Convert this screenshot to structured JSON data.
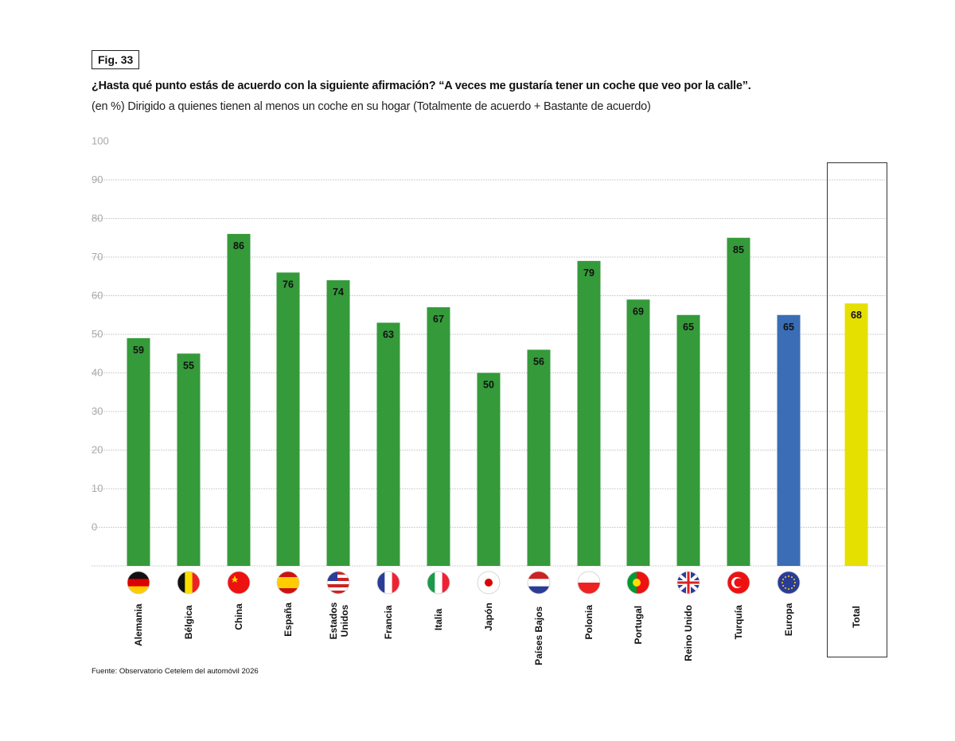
{
  "figure_label": "Fig. 33",
  "chart_data": {
    "type": "bar",
    "title": "¿Hasta qué punto estás de acuerdo con la siguiente afirmación? “A veces me gustaría tener un coche que veo por la calle”.",
    "subtitle": "(en %) Dirigido a quienes tienen al menos un coche en su hogar (Totalmente de acuerdo + Bastante de acuerdo)",
    "categories": [
      "Alemania",
      "Bélgica",
      "China",
      "España",
      "Estados Unidos",
      "Francia",
      "Italia",
      "Japón",
      "Países Bajos",
      "Polonia",
      "Portugal",
      "Reino Unido",
      "Turquía",
      "Europa",
      "Total"
    ],
    "values": [
      59,
      55,
      86,
      76,
      74,
      63,
      67,
      50,
      56,
      79,
      69,
      65,
      85,
      65,
      68
    ],
    "ytick_labels": [
      "0",
      "10",
      "20",
      "30",
      "40",
      "50",
      "60",
      "70",
      "80",
      "90",
      "100"
    ],
    "ylim": [
      0,
      100
    ],
    "grid": true,
    "colors": {
      "country": "#359a3a",
      "Europa": "#3a6db5",
      "Total": "#e6e000"
    },
    "flags": [
      "germany-flag",
      "belgium-flag",
      "china-flag",
      "spain-flag",
      "usa-flag",
      "france-flag",
      "italy-flag",
      "japan-flag",
      "netherlands-flag",
      "poland-flag",
      "portugal-flag",
      "uk-flag",
      "turkey-flag",
      "eu-flag"
    ],
    "highlight_box": "Total"
  },
  "source": "Fuente: Observatorio Cetelem del automóvil 2026"
}
